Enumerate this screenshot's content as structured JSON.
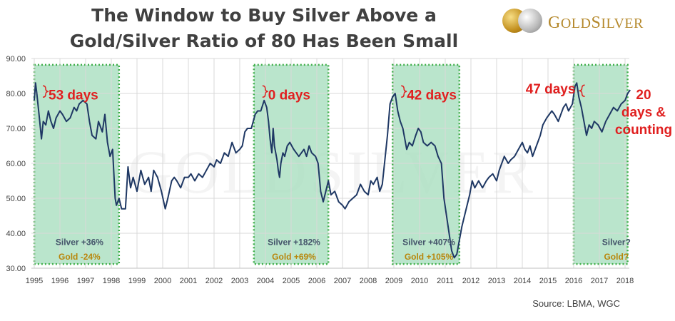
{
  "title_line1": "The Window to Buy Silver Above a",
  "title_line2": "Gold/Silver Ratio of 80 Has Been Small",
  "logo": {
    "text_gold": "G",
    "text_rest": "OLD",
    "text_silver": "S",
    "text_rest2": "ILVER"
  },
  "source": "Source: LBMA, WGC",
  "watermark": "GOLDSILVER",
  "colors": {
    "line": "#1f3864",
    "window_fill": "#a9dfbf",
    "window_border": "#3fae49",
    "label_red": "#e01f1f",
    "silver_text": "#44546a",
    "gold_text": "#b8860b"
  },
  "chart_data": {
    "type": "line",
    "ylim": [
      30,
      90
    ],
    "xlim": [
      1995,
      2018.3
    ],
    "y_ticks": [
      "30.00",
      "40.00",
      "50.00",
      "60.00",
      "70.00",
      "80.00",
      "90.00"
    ],
    "x_ticks": [
      "1995",
      "1996",
      "1997",
      "1998",
      "1999",
      "2000",
      "2001",
      "2002",
      "2003",
      "2004",
      "2005",
      "2006",
      "2007",
      "2008",
      "2009",
      "2010",
      "2011",
      "2012",
      "2013",
      "2014",
      "2015",
      "2016",
      "2017",
      "2018"
    ],
    "series": [
      {
        "points": [
          [
            1995.0,
            78
          ],
          [
            1995.05,
            83
          ],
          [
            1995.1,
            80
          ],
          [
            1995.2,
            73
          ],
          [
            1995.28,
            67
          ],
          [
            1995.35,
            72
          ],
          [
            1995.45,
            71
          ],
          [
            1995.55,
            75
          ],
          [
            1995.65,
            72
          ],
          [
            1995.75,
            70
          ],
          [
            1995.85,
            73
          ],
          [
            1996.0,
            75
          ],
          [
            1996.1,
            74
          ],
          [
            1996.25,
            72
          ],
          [
            1996.4,
            73
          ],
          [
            1996.55,
            76
          ],
          [
            1996.65,
            75
          ],
          [
            1996.75,
            77
          ],
          [
            1996.9,
            78
          ],
          [
            1997.05,
            77
          ],
          [
            1997.15,
            72
          ],
          [
            1997.25,
            68
          ],
          [
            1997.4,
            67
          ],
          [
            1997.5,
            72
          ],
          [
            1997.65,
            69
          ],
          [
            1997.75,
            74
          ],
          [
            1997.85,
            66
          ],
          [
            1997.95,
            62
          ],
          [
            1998.05,
            64
          ],
          [
            1998.15,
            50
          ],
          [
            1998.2,
            48
          ],
          [
            1998.3,
            50
          ],
          [
            1998.4,
            47
          ],
          [
            1998.55,
            47
          ],
          [
            1998.65,
            59
          ],
          [
            1998.75,
            53
          ],
          [
            1998.85,
            56
          ],
          [
            1999.0,
            52
          ],
          [
            1999.15,
            58
          ],
          [
            1999.3,
            54
          ],
          [
            1999.45,
            56
          ],
          [
            1999.55,
            52
          ],
          [
            1999.65,
            58
          ],
          [
            1999.8,
            56
          ],
          [
            1999.95,
            52
          ],
          [
            2000.1,
            47
          ],
          [
            2000.2,
            50
          ],
          [
            2000.35,
            55
          ],
          [
            2000.45,
            56
          ],
          [
            2000.55,
            55
          ],
          [
            2000.7,
            53
          ],
          [
            2000.85,
            56
          ],
          [
            2001.0,
            56
          ],
          [
            2001.1,
            57
          ],
          [
            2001.25,
            55
          ],
          [
            2001.4,
            57
          ],
          [
            2001.55,
            56
          ],
          [
            2001.7,
            58
          ],
          [
            2001.85,
            60
          ],
          [
            2002.0,
            59
          ],
          [
            2002.1,
            61
          ],
          [
            2002.25,
            60
          ],
          [
            2002.4,
            63
          ],
          [
            2002.55,
            62
          ],
          [
            2002.7,
            66
          ],
          [
            2002.85,
            63
          ],
          [
            2003.0,
            64
          ],
          [
            2003.1,
            65
          ],
          [
            2003.2,
            69
          ],
          [
            2003.3,
            70
          ],
          [
            2003.45,
            70
          ],
          [
            2003.6,
            74
          ],
          [
            2003.7,
            75
          ],
          [
            2003.82,
            75
          ],
          [
            2003.95,
            78
          ],
          [
            2004.05,
            76
          ],
          [
            2004.12,
            72
          ],
          [
            2004.18,
            67
          ],
          [
            2004.25,
            63
          ],
          [
            2004.3,
            70
          ],
          [
            2004.35,
            65
          ],
          [
            2004.45,
            61
          ],
          [
            2004.5,
            58
          ],
          [
            2004.55,
            56
          ],
          [
            2004.6,
            60
          ],
          [
            2004.68,
            63
          ],
          [
            2004.75,
            62
          ],
          [
            2004.85,
            65
          ],
          [
            2004.95,
            66
          ],
          [
            2005.1,
            64
          ],
          [
            2005.2,
            63
          ],
          [
            2005.3,
            62
          ],
          [
            2005.4,
            63
          ],
          [
            2005.5,
            64
          ],
          [
            2005.6,
            62
          ],
          [
            2005.7,
            65
          ],
          [
            2005.8,
            63
          ],
          [
            2005.95,
            62
          ],
          [
            2006.05,
            60
          ],
          [
            2006.15,
            52
          ],
          [
            2006.25,
            49
          ],
          [
            2006.35,
            52
          ],
          [
            2006.45,
            55
          ],
          [
            2006.55,
            51
          ],
          [
            2006.7,
            52
          ],
          [
            2006.85,
            49
          ],
          [
            2007.0,
            48
          ],
          [
            2007.1,
            47
          ],
          [
            2007.25,
            49
          ],
          [
            2007.4,
            50
          ],
          [
            2007.55,
            51
          ],
          [
            2007.7,
            54
          ],
          [
            2007.85,
            52
          ],
          [
            2008.0,
            51
          ],
          [
            2008.1,
            55
          ],
          [
            2008.2,
            54
          ],
          [
            2008.35,
            56
          ],
          [
            2008.45,
            52
          ],
          [
            2008.55,
            54
          ],
          [
            2008.65,
            61
          ],
          [
            2008.75,
            68
          ],
          [
            2008.85,
            77
          ],
          [
            2008.95,
            79
          ],
          [
            2009.05,
            80
          ],
          [
            2009.15,
            75
          ],
          [
            2009.25,
            72
          ],
          [
            2009.35,
            70
          ],
          [
            2009.45,
            66
          ],
          [
            2009.5,
            64
          ],
          [
            2009.6,
            66
          ],
          [
            2009.72,
            65
          ],
          [
            2009.85,
            68
          ],
          [
            2009.95,
            70
          ],
          [
            2010.05,
            69
          ],
          [
            2010.15,
            66
          ],
          [
            2010.3,
            65
          ],
          [
            2010.45,
            66
          ],
          [
            2010.6,
            65
          ],
          [
            2010.72,
            62
          ],
          [
            2010.85,
            60
          ],
          [
            2010.95,
            50
          ],
          [
            2011.05,
            45
          ],
          [
            2011.15,
            40
          ],
          [
            2011.25,
            35
          ],
          [
            2011.35,
            33
          ],
          [
            2011.45,
            34
          ],
          [
            2011.55,
            38
          ],
          [
            2011.65,
            42
          ],
          [
            2011.75,
            45
          ],
          [
            2011.85,
            48
          ],
          [
            2011.95,
            51
          ],
          [
            2012.05,
            55
          ],
          [
            2012.15,
            53
          ],
          [
            2012.3,
            55
          ],
          [
            2012.45,
            53
          ],
          [
            2012.6,
            55
          ],
          [
            2012.7,
            56
          ],
          [
            2012.85,
            57
          ],
          [
            2013.0,
            55
          ],
          [
            2013.1,
            58
          ],
          [
            2013.2,
            60
          ],
          [
            2013.3,
            62
          ],
          [
            2013.45,
            60
          ],
          [
            2013.55,
            61
          ],
          [
            2013.7,
            62
          ],
          [
            2013.85,
            64
          ],
          [
            2014.0,
            66
          ],
          [
            2014.1,
            64
          ],
          [
            2014.2,
            63
          ],
          [
            2014.3,
            65
          ],
          [
            2014.4,
            62
          ],
          [
            2014.5,
            64
          ],
          [
            2014.6,
            66
          ],
          [
            2014.7,
            68
          ],
          [
            2014.8,
            71
          ],
          [
            2014.95,
            73
          ],
          [
            2015.05,
            74
          ],
          [
            2015.15,
            75
          ],
          [
            2015.25,
            74
          ],
          [
            2015.4,
            72
          ],
          [
            2015.5,
            74
          ],
          [
            2015.6,
            76
          ],
          [
            2015.7,
            77
          ],
          [
            2015.8,
            75
          ],
          [
            2015.95,
            77
          ],
          [
            2016.05,
            82
          ],
          [
            2016.12,
            83
          ],
          [
            2016.2,
            79
          ],
          [
            2016.3,
            76
          ],
          [
            2016.4,
            72
          ],
          [
            2016.5,
            68
          ],
          [
            2016.6,
            71
          ],
          [
            2016.7,
            70
          ],
          [
            2016.8,
            72
          ],
          [
            2016.95,
            71
          ],
          [
            2017.1,
            69
          ],
          [
            2017.25,
            72
          ],
          [
            2017.4,
            74
          ],
          [
            2017.55,
            76
          ],
          [
            2017.7,
            75
          ],
          [
            2017.85,
            77
          ],
          [
            2018.0,
            78
          ],
          [
            2018.1,
            80
          ],
          [
            2018.2,
            81
          ]
        ]
      }
    ],
    "windows": [
      {
        "start": 1995.0,
        "end": 1998.3,
        "label": "53 days",
        "silver": "Silver +36%",
        "gold": "Gold -24%"
      },
      {
        "start": 2003.55,
        "end": 2006.45,
        "label": "0 days",
        "silver": "Silver +182%",
        "gold": "Gold +69%"
      },
      {
        "start": 2008.95,
        "end": 2011.55,
        "label": "42 days",
        "silver": "Silver +407%",
        "gold": "Gold +105%"
      },
      {
        "start": 2016.0,
        "end": 2018.1,
        "label": "",
        "silver": "Silver?",
        "gold": "Gold?"
      }
    ],
    "annotations": [
      {
        "text": "47 days",
        "year": 2015.1,
        "value": 80
      }
    ],
    "counting_label": [
      "20",
      "days &",
      "counting"
    ]
  }
}
